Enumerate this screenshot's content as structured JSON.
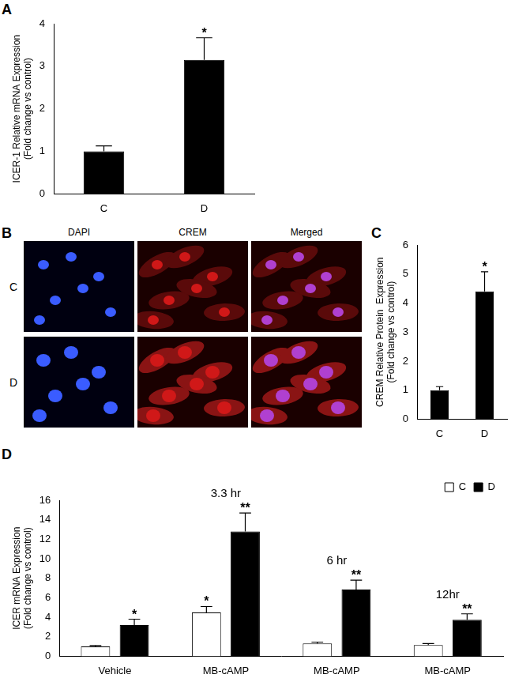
{
  "chart_data": [
    {
      "type": "bar",
      "panel_label": "A",
      "categories": [
        "C",
        "D"
      ],
      "values": [
        1.0,
        3.15
      ],
      "errors": [
        0.13,
        0.52
      ],
      "color": "#000000",
      "annotations": [
        null,
        "*"
      ],
      "y_label": [
        "ICER-1 Relative mRNA Expression",
        "(Fold change vs control)"
      ],
      "ylim": [
        0,
        4
      ],
      "yticks": [
        0,
        1,
        2,
        3,
        4
      ],
      "grid": false
    },
    {
      "type": "bar",
      "panel_label": "C",
      "categories": [
        "C",
        "D"
      ],
      "values": [
        1.0,
        4.4
      ],
      "errors": [
        0.12,
        0.68
      ],
      "color": "#000000",
      "annotations": [
        null,
        "*"
      ],
      "y_label": [
        "CREM Relative Protein  Expression",
        "(Fold change vs control)"
      ],
      "ylim": [
        0,
        6
      ],
      "yticks": [
        0,
        1,
        2,
        3,
        4,
        5,
        6
      ],
      "grid": false
    },
    {
      "type": "bar",
      "panel_label": "D",
      "categories": [
        "Vehicle",
        "MB-cAMP",
        "MB-cAMP",
        "MB-cAMP"
      ],
      "group_labels": [
        null,
        "3.3 hr",
        "6 hr",
        "12hr"
      ],
      "series": [
        {
          "name": "C",
          "color": "#ffffff",
          "values": [
            1.0,
            4.5,
            1.3,
            1.15
          ],
          "errors": [
            0.1,
            0.6,
            0.15,
            0.15
          ],
          "annotations": [
            null,
            "*",
            null,
            null
          ]
        },
        {
          "name": "D",
          "color": "#000000",
          "values": [
            3.2,
            12.8,
            6.85,
            3.75
          ],
          "errors": [
            0.6,
            1.9,
            0.95,
            0.6
          ],
          "annotations": [
            "*",
            "**",
            "**",
            "**"
          ]
        }
      ],
      "y_label": [
        "ICER mRNA Expression",
        "(Fold change vs control)"
      ],
      "ylim": [
        0,
        16
      ],
      "yticks": [
        0,
        2,
        4,
        6,
        8,
        10,
        12,
        14,
        16
      ],
      "grid": false,
      "legend": "top-right"
    }
  ],
  "image_panel": {
    "panel_label": "B",
    "columns": [
      "DAPI",
      "CREM",
      "Merged"
    ],
    "rows": [
      "C",
      "D"
    ]
  }
}
